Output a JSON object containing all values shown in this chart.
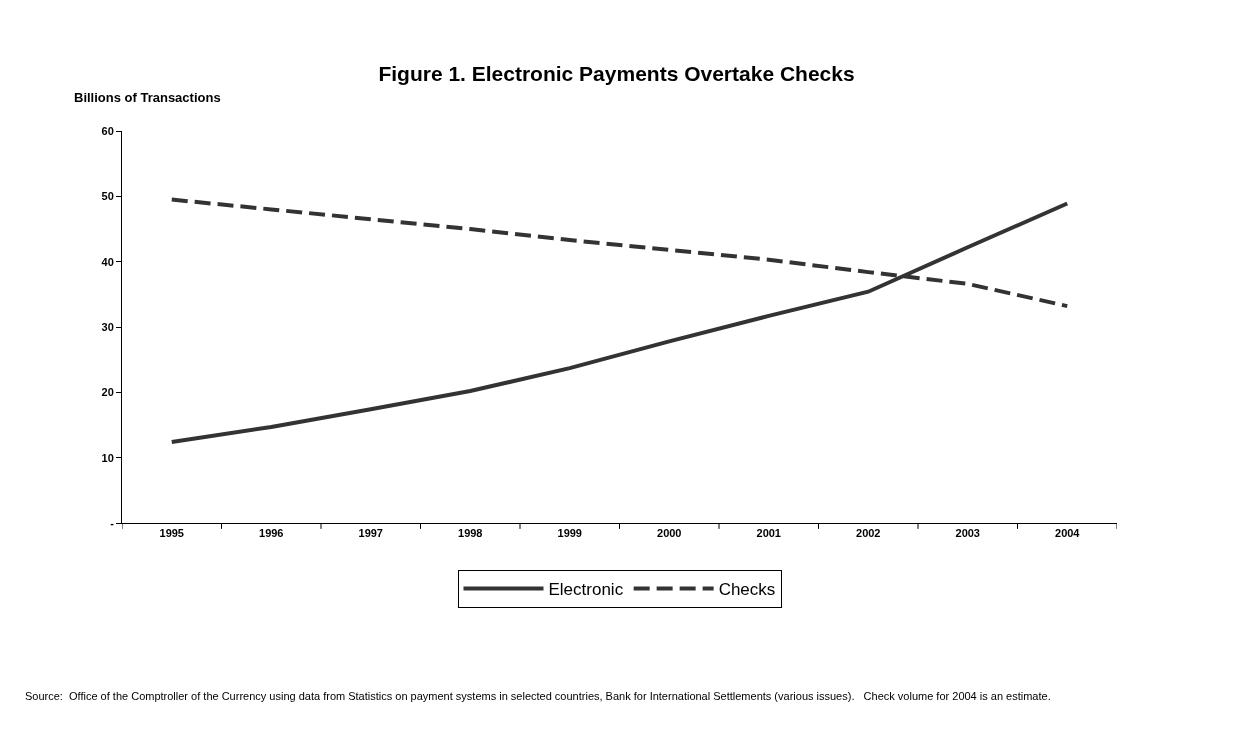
{
  "chart_data": {
    "type": "line",
    "title": "Figure 1. Electronic Payments Overtake Checks",
    "ylabel": "Billions of Transactions",
    "categories": [
      "1995",
      "1996",
      "1997",
      "1998",
      "1999",
      "2000",
      "2001",
      "2002",
      "2003",
      "2004"
    ],
    "series": [
      {
        "name": "Electronic",
        "color": "#333333",
        "line_style": "solid",
        "values": [
          12.4,
          14.7,
          17.4,
          20.2,
          23.7,
          27.8,
          31.7,
          35.4,
          42.2,
          48.9
        ]
      },
      {
        "name": "Checks",
        "color": "#333333",
        "line_style": "dashed",
        "values": [
          49.5,
          48,
          46.5,
          45,
          43.3,
          41.8,
          40.3,
          38.4,
          36.6,
          33.2
        ]
      }
    ],
    "ylim": [
      0,
      60
    ],
    "yticks": [
      {
        "value": 0,
        "label": "-"
      },
      10,
      20,
      30,
      40,
      50,
      60
    ],
    "grid": false,
    "legend": "bottom",
    "marker": "none",
    "annotations": [
      "Source:  Office of the Comptroller of the Currency using data from Statistics on payment systems in selected countries, Bank for International Settlements (various issues).   Check volume for 2004 is an estimate."
    ]
  }
}
